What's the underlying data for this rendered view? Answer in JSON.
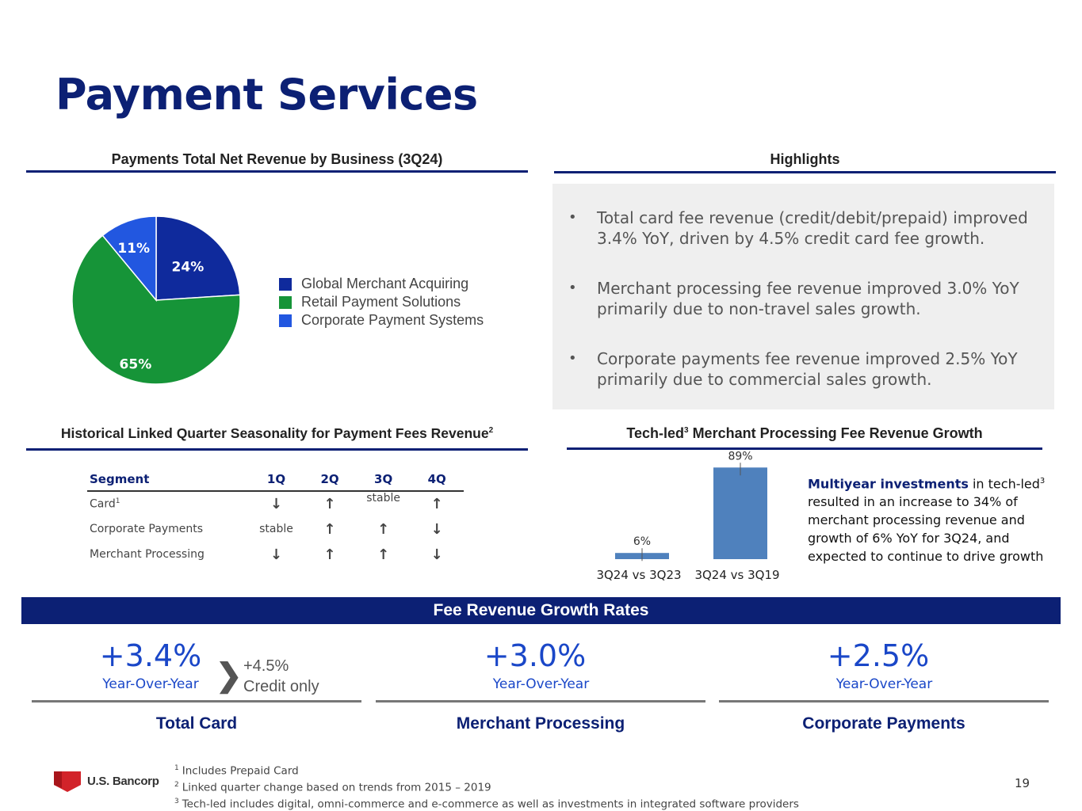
{
  "title": "Payment Services",
  "pie_section": {
    "heading": "Payments Total Net Revenue by Business (3Q24)"
  },
  "highlights": {
    "heading": "Highlights",
    "items": [
      "Total card fee revenue (credit/debit/prepaid) improved 3.4% YoY, driven by 4.5% credit card fee growth.",
      "Merchant processing fee revenue improved 3.0% YoY primarily due to non-travel sales growth.",
      "Corporate payments fee revenue improved 2.5% YoY primarily due to commercial sales growth."
    ]
  },
  "seasonality": {
    "heading": "Historical Linked Quarter Seasonality for  Payment Fees Revenue",
    "heading_sup": "2",
    "columns": [
      "Segment",
      "1Q",
      "2Q",
      "3Q",
      "4Q"
    ],
    "rows": [
      {
        "segment": "Card",
        "sup": "1",
        "values": [
          "down",
          "up",
          "stable",
          "up"
        ]
      },
      {
        "segment": "Corporate Payments",
        "sup": "",
        "values": [
          "stable",
          "up",
          "up",
          "down"
        ]
      },
      {
        "segment": "Merchant Processing",
        "sup": "",
        "values": [
          "down",
          "up",
          "up",
          "down"
        ]
      }
    ],
    "arrow_glyphs": {
      "up": "🡑",
      "down": "🡓"
    }
  },
  "tech_section": {
    "heading_pre": "Tech-led",
    "heading_sup": "3",
    "heading_post": " Merchant Processing Fee Revenue Growth",
    "desc_bold": "Multiyear investments",
    "desc_rest_1": " in tech-led",
    "desc_sup": "3",
    "desc_rest_2": " resulted in an increase to 34% of merchant processing revenue and growth of 6% YoY for 3Q24, and expected to continue to drive growth"
  },
  "fee_banner": "Fee Revenue Growth Rates",
  "stats": [
    {
      "value": "+3.4%",
      "sub": "Year-Over-Year",
      "category": "Total Card"
    },
    {
      "value": "+3.0%",
      "sub": "Year-Over-Year",
      "category": "Merchant Processing"
    },
    {
      "value": "+2.5%",
      "sub": "Year-Over-Year",
      "category": "Corporate Payments"
    }
  ],
  "credit_only": {
    "chevron": "❯",
    "value": "+4.5%",
    "label": "Credit only"
  },
  "footer": {
    "logo_text": "U.S. Bancorp",
    "footnotes": [
      {
        "sup": "1",
        "text": "Includes Prepaid Card"
      },
      {
        "sup": "2",
        "text": "Linked quarter change based on trends from 2015 – 2019"
      },
      {
        "sup": "3",
        "text": "Tech-led includes digital, omni-commerce and e-commerce as well as investments in integrated software providers"
      }
    ],
    "page_number": "19"
  },
  "chart_data": [
    {
      "type": "pie",
      "title": "Payments Total Net Revenue by Business (3Q24)",
      "labels": [
        "Global Merchant Acquiring",
        "Retail Payment Solutions",
        "Corporate Payment Systems"
      ],
      "values": [
        24,
        65,
        11
      ],
      "value_labels": [
        "24%",
        "65%",
        "11%"
      ],
      "colors": [
        "#0f2a9c",
        "#169438",
        "#2257e0"
      ],
      "legend": "right"
    },
    {
      "type": "bar",
      "title": "Tech-led3 Merchant Processing Fee Revenue Growth",
      "categories": [
        "3Q24 vs 3Q23",
        "3Q24 vs 3Q19"
      ],
      "values": [
        6,
        89
      ],
      "value_labels": [
        "6%",
        "89%"
      ],
      "color": "#4f81bd",
      "ylim": [
        0,
        100
      ]
    }
  ]
}
